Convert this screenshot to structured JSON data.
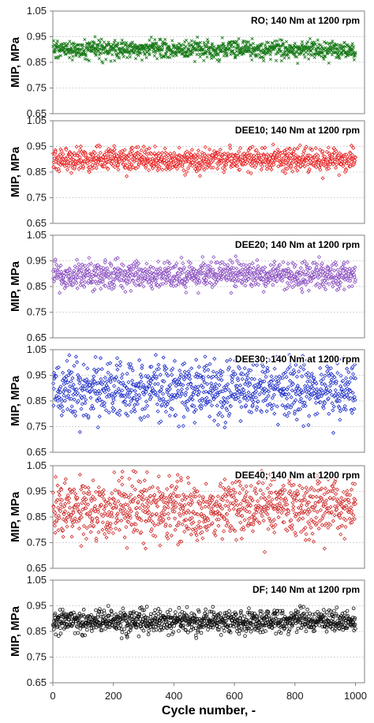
{
  "xlabel": "Cycle number, -",
  "x_ticks": [
    0,
    200,
    400,
    600,
    800,
    1000
  ],
  "chart_data": [
    {
      "type": "scatter",
      "title": "RO; 140 Nm at 1200 rpm",
      "ylabel": "MIP, MPa",
      "xlim": [
        0,
        1030
      ],
      "ylim": [
        0.65,
        1.05
      ],
      "y_ticks": [
        "0.65",
        "0.75",
        "0.85",
        "0.95",
        "1.05"
      ],
      "grid": true,
      "marker": "x",
      "color": "#1a7a1a",
      "n_points": 1000,
      "mean": 0.9,
      "std": 0.018,
      "min": 0.84,
      "max": 0.95
    },
    {
      "type": "scatter",
      "title": "DEE10; 140 Nm at 1200 rpm",
      "ylabel": "MIP, MPa",
      "xlim": [
        0,
        1030
      ],
      "ylim": [
        0.65,
        1.05
      ],
      "y_ticks": [
        "0.65",
        "0.75",
        "0.85",
        "0.95",
        "1.05"
      ],
      "grid": true,
      "marker": "diamond",
      "color": "#e82020",
      "n_points": 1000,
      "mean": 0.9,
      "std": 0.022,
      "min": 0.82,
      "max": 0.96
    },
    {
      "type": "scatter",
      "title": "DEE20; 140 Nm at 1200 rpm",
      "ylabel": "MIP, MPa",
      "xlim": [
        0,
        1030
      ],
      "ylim": [
        0.65,
        1.05
      ],
      "y_ticks": [
        "0.65",
        "0.75",
        "0.85",
        "0.95",
        "1.05"
      ],
      "grid": true,
      "marker": "diamond",
      "color": "#8a4fc0",
      "n_points": 1000,
      "mean": 0.895,
      "std": 0.026,
      "min": 0.82,
      "max": 0.97
    },
    {
      "type": "scatter",
      "title": "DEE30; 140 Nm at 1200 rpm",
      "ylabel": "MIP, MPa",
      "xlim": [
        0,
        1030
      ],
      "ylim": [
        0.65,
        1.05
      ],
      "y_ticks": [
        "0.65",
        "0.75",
        "0.85",
        "0.95",
        "1.05"
      ],
      "grid": true,
      "marker": "diamond",
      "color": "#1f2fc8",
      "n_points": 1000,
      "mean": 0.895,
      "std": 0.055,
      "min": 0.72,
      "max": 1.03
    },
    {
      "type": "scatter",
      "title": "DEE40; 140 Nm at 1200 rpm",
      "ylabel": "MIP, MPa",
      "xlim": [
        0,
        1030
      ],
      "ylim": [
        0.65,
        1.05
      ],
      "y_ticks": [
        "0.65",
        "0.75",
        "0.85",
        "0.95",
        "1.05"
      ],
      "grid": true,
      "marker": "diamond",
      "color": "#d02a2a",
      "n_points": 1000,
      "mean": 0.885,
      "std": 0.06,
      "min": 0.67,
      "max": 1.03
    },
    {
      "type": "scatter",
      "title": "DF; 140 Nm at 1200 rpm",
      "ylabel": "MIP, MPa",
      "xlim": [
        0,
        1030
      ],
      "ylim": [
        0.65,
        1.05
      ],
      "y_ticks": [
        "0.65",
        "0.75",
        "0.85",
        "0.95",
        "1.05"
      ],
      "grid": true,
      "marker": "circle",
      "color": "#111111",
      "n_points": 1000,
      "mean": 0.89,
      "std": 0.022,
      "min": 0.81,
      "max": 0.95
    }
  ]
}
